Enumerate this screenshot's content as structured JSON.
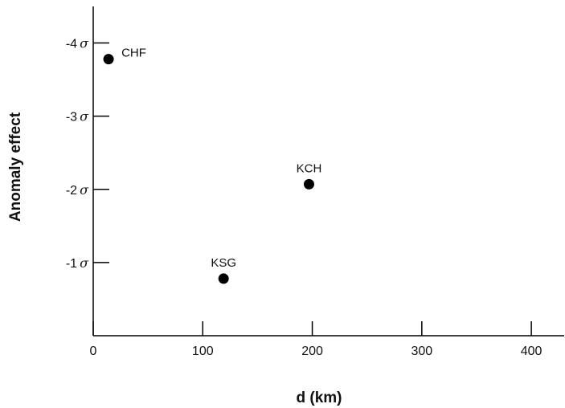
{
  "chart_data": {
    "type": "scatter",
    "title": "",
    "xlabel": "d (km)",
    "ylabel": "Anomaly effect",
    "xlim": [
      0,
      430
    ],
    "ylim": [
      -4.5,
      0
    ],
    "y_inverted": true,
    "x_ticks": [
      {
        "value": 0,
        "label": "0"
      },
      {
        "value": 100,
        "label": "100"
      },
      {
        "value": 200,
        "label": "200"
      },
      {
        "value": 300,
        "label": "300"
      },
      {
        "value": 400,
        "label": "400"
      }
    ],
    "y_ticks": [
      {
        "value": -4,
        "label": "-4",
        "unit": "σ"
      },
      {
        "value": -3,
        "label": "-3",
        "unit": "σ"
      },
      {
        "value": -2,
        "label": "-2",
        "unit": "σ"
      },
      {
        "value": -1,
        "label": "-1",
        "unit": "σ"
      }
    ],
    "points": [
      {
        "label": "CHF",
        "x": 14,
        "y": -3.78,
        "label_position": "upper-right"
      },
      {
        "label": "KCH",
        "x": 197,
        "y": -2.07,
        "label_position": "above"
      },
      {
        "label": "KSG",
        "x": 119,
        "y": -0.78,
        "label_position": "above"
      }
    ],
    "grid": false,
    "colors": {
      "marker": "#000000",
      "axis": "#000000",
      "text": "#111111"
    }
  }
}
